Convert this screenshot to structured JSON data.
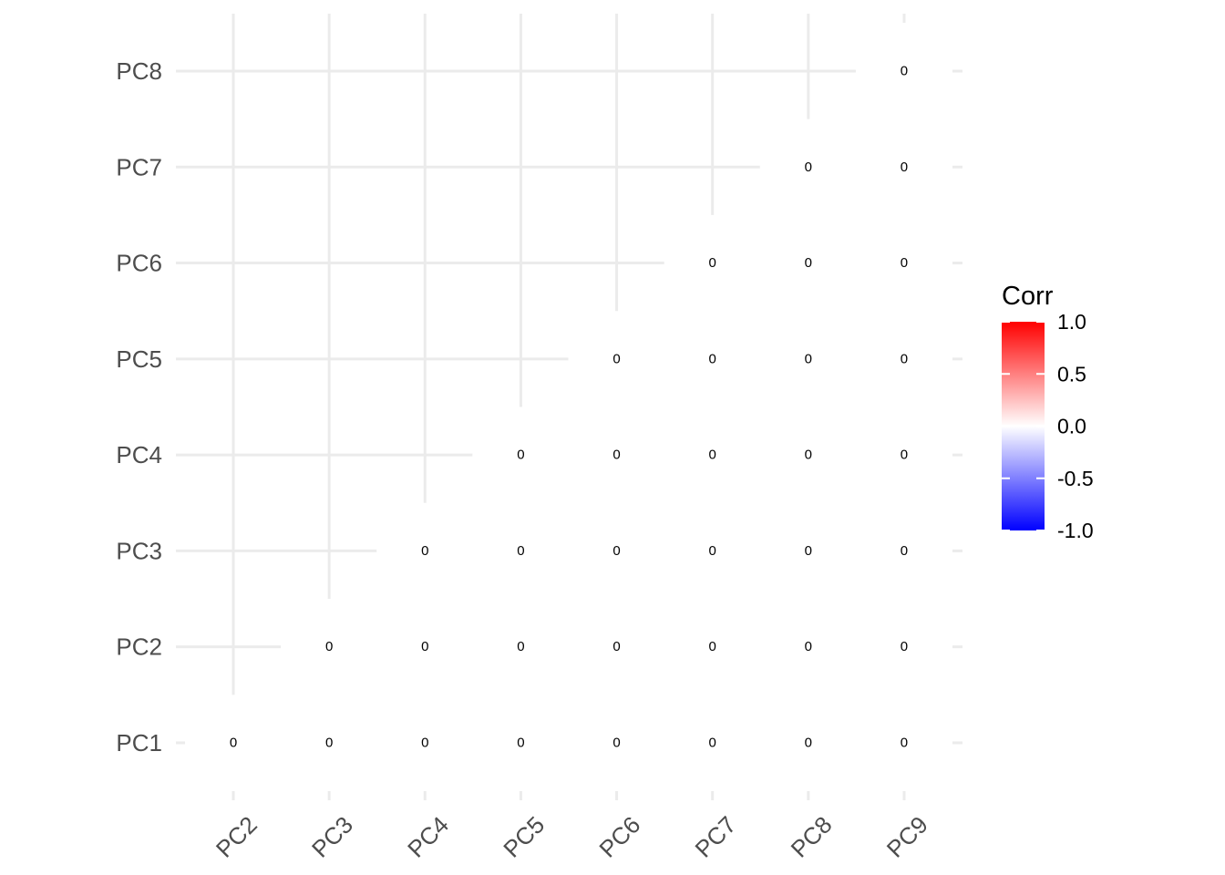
{
  "chart_data": {
    "type": "heatmap",
    "x_categories": [
      "PC2",
      "PC3",
      "PC4",
      "PC5",
      "PC6",
      "PC7",
      "PC8",
      "PC9"
    ],
    "y_categories": [
      "PC1",
      "PC2",
      "PC3",
      "PC4",
      "PC5",
      "PC6",
      "PC7",
      "PC8"
    ],
    "cells": [
      {
        "x": "PC2",
        "y": "PC1",
        "value": 0,
        "label": "0"
      },
      {
        "x": "PC3",
        "y": "PC1",
        "value": 0,
        "label": "0"
      },
      {
        "x": "PC4",
        "y": "PC1",
        "value": 0,
        "label": "0"
      },
      {
        "x": "PC5",
        "y": "PC1",
        "value": 0,
        "label": "0"
      },
      {
        "x": "PC6",
        "y": "PC1",
        "value": 0,
        "label": "0"
      },
      {
        "x": "PC7",
        "y": "PC1",
        "value": 0,
        "label": "0"
      },
      {
        "x": "PC8",
        "y": "PC1",
        "value": 0,
        "label": "0"
      },
      {
        "x": "PC9",
        "y": "PC1",
        "value": 0,
        "label": "0"
      },
      {
        "x": "PC3",
        "y": "PC2",
        "value": 0,
        "label": "0"
      },
      {
        "x": "PC4",
        "y": "PC2",
        "value": 0,
        "label": "0"
      },
      {
        "x": "PC5",
        "y": "PC2",
        "value": 0,
        "label": "0"
      },
      {
        "x": "PC6",
        "y": "PC2",
        "value": 0,
        "label": "0"
      },
      {
        "x": "PC7",
        "y": "PC2",
        "value": 0,
        "label": "0"
      },
      {
        "x": "PC8",
        "y": "PC2",
        "value": 0,
        "label": "0"
      },
      {
        "x": "PC9",
        "y": "PC2",
        "value": 0,
        "label": "0"
      },
      {
        "x": "PC4",
        "y": "PC3",
        "value": 0,
        "label": "0"
      },
      {
        "x": "PC5",
        "y": "PC3",
        "value": 0,
        "label": "0"
      },
      {
        "x": "PC6",
        "y": "PC3",
        "value": 0,
        "label": "0"
      },
      {
        "x": "PC7",
        "y": "PC3",
        "value": 0,
        "label": "0"
      },
      {
        "x": "PC8",
        "y": "PC3",
        "value": 0,
        "label": "0"
      },
      {
        "x": "PC9",
        "y": "PC3",
        "value": 0,
        "label": "0"
      },
      {
        "x": "PC5",
        "y": "PC4",
        "value": 0,
        "label": "0"
      },
      {
        "x": "PC6",
        "y": "PC4",
        "value": 0,
        "label": "0"
      },
      {
        "x": "PC7",
        "y": "PC4",
        "value": 0,
        "label": "0"
      },
      {
        "x": "PC8",
        "y": "PC4",
        "value": 0,
        "label": "0"
      },
      {
        "x": "PC9",
        "y": "PC4",
        "value": 0,
        "label": "0"
      },
      {
        "x": "PC6",
        "y": "PC5",
        "value": 0,
        "label": "0"
      },
      {
        "x": "PC7",
        "y": "PC5",
        "value": 0,
        "label": "0"
      },
      {
        "x": "PC8",
        "y": "PC5",
        "value": 0,
        "label": "0"
      },
      {
        "x": "PC9",
        "y": "PC5",
        "value": 0,
        "label": "0"
      },
      {
        "x": "PC7",
        "y": "PC6",
        "value": 0,
        "label": "0"
      },
      {
        "x": "PC8",
        "y": "PC6",
        "value": 0,
        "label": "0"
      },
      {
        "x": "PC9",
        "y": "PC6",
        "value": 0,
        "label": "0"
      },
      {
        "x": "PC8",
        "y": "PC7",
        "value": 0,
        "label": "0"
      },
      {
        "x": "PC9",
        "y": "PC7",
        "value": 0,
        "label": "0"
      },
      {
        "x": "PC9",
        "y": "PC8",
        "value": 0,
        "label": "0"
      }
    ],
    "legend": {
      "title": "Corr",
      "placement": "right",
      "labels": [
        "1.0",
        "0.5",
        "0.0",
        "-0.5",
        "-1.0"
      ],
      "range": [
        -1,
        1
      ],
      "low_color": "#0000ff",
      "mid_color": "#ffffff",
      "high_color": "#ff0000"
    },
    "grid": true
  }
}
